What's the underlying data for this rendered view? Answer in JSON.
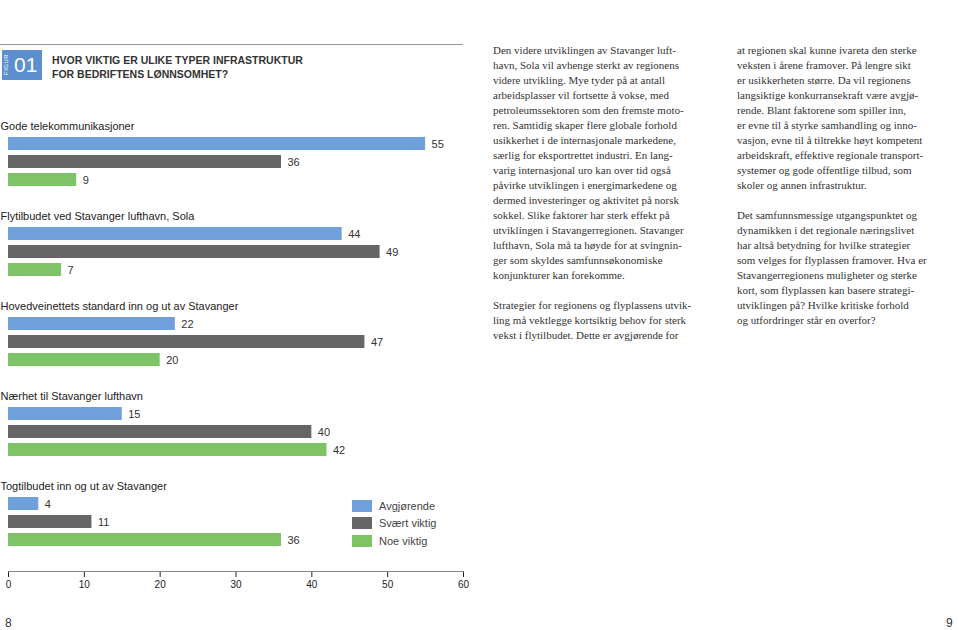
{
  "chart_data": {
    "type": "bar",
    "orientation": "horizontal",
    "title": "HVOR VIKTIG ER ULIKE TYPER INFRASTRUKTUR FOR BEDRIFTENS LØNNSOMHET?",
    "categories": [
      "Gode telekommunikasjoner",
      "Flytilbudet ved Stavanger lufthavn, Sola",
      "Hovedveinettets standard inn og ut av Stavanger",
      "Nærhet til Stavanger lufthavn",
      "Togtilbudet inn og ut av Stavanger"
    ],
    "series": [
      {
        "name": "Avgjørende",
        "color": "#6fa0dc",
        "values": [
          55,
          44,
          22,
          15,
          4
        ]
      },
      {
        "name": "Svært viktig",
        "color": "#666666",
        "values": [
          36,
          49,
          47,
          40,
          11
        ]
      },
      {
        "name": "Noe viktig",
        "color": "#7ec466",
        "values": [
          9,
          7,
          20,
          42,
          36
        ]
      }
    ],
    "xlim": [
      0,
      60
    ],
    "xticks": [
      0,
      10,
      20,
      30,
      40,
      50,
      60
    ],
    "data_labels": true,
    "grid": false,
    "legend": "bottom-right"
  },
  "page": {
    "figure_label": "FIGUR",
    "figure_number": "01",
    "columns": [
      [
        [
          "Den videre utviklingen av Stavanger luft-",
          "havn, Sola vil avhenge sterkt av regionens",
          "videre utvikling. Mye tyder på at antall",
          "arbeidsplasser vil fortsette å vokse, med",
          "petroleumssektoren som den fremste moto-",
          "ren. Samtidig skaper flere globale forhold",
          "usikkerhet i de internasjonale markedene,",
          "særlig for eksportrettet industri. En lang-",
          "varig internasjonal uro kan over tid også",
          "påvirke utviklingen i energimarkedene og",
          "dermed investeringer og aktivitet på norsk",
          "sokkel. Slike faktorer har sterk effekt på",
          "utviklingen i Stavangerregionen. Stavanger",
          "lufthavn, Sola må ta høyde for at svingnin-",
          "ger som skyldes samfunnsøkonomiske",
          "konjunkturer kan forekomme."
        ],
        [
          "Strategier for regionens og flyplassens utvik-",
          "ling må vektlegge kortsiktig behov for sterk",
          "vekst i flytilbudet. Dette er avgjørende for"
        ]
      ],
      [
        [
          "at regionen skal kunne ivareta den sterke",
          "veksten i årene framover. På lengre sikt",
          "er usikkerheten større. Da vil regionens",
          "langsiktige konkurransekraft være avgjø-",
          "rende. Blant faktorene som spiller inn,",
          "er evne til å styrke samhandling og inno-",
          "vasjon, evne til å tiltrekke høyt kompetent",
          "arbeidskraft, effektive regionale transport-",
          "systemer og gode offentlige tilbud, som",
          "skoler og annen infrastruktur."
        ],
        [
          "Det samfunnsmessige utgangspunktet og",
          "dynamikken i det regionale næringslivet",
          "har altså betydning for hvilke strategier",
          "som velges for flyplassen framover. Hva er",
          "Stavangerregionens muligheter og sterke",
          "kort, som flyplassen kan basere strategi-",
          "utviklingen på? Hvilke kritiske forhold",
          "og utfordringer står en overfor?"
        ]
      ]
    ],
    "page_numbers": [
      "8",
      "9"
    ]
  }
}
